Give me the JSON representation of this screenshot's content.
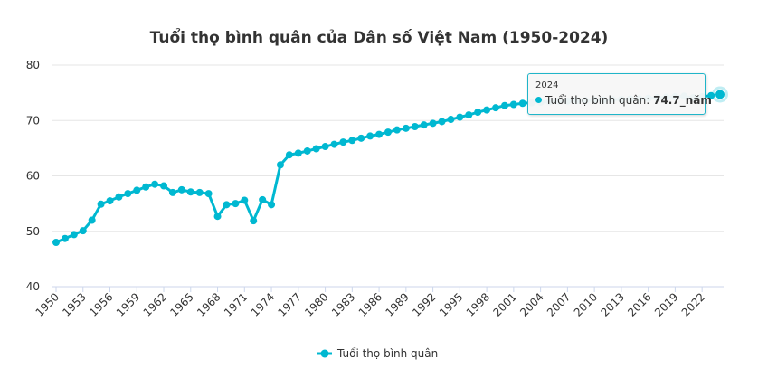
{
  "chart_data": {
    "type": "line",
    "title": "Tuổi thọ bình quân của Dân số Việt Nam (1950-2024)",
    "xlabel": "",
    "ylabel": "",
    "x": [
      1950,
      1951,
      1952,
      1953,
      1954,
      1955,
      1956,
      1957,
      1958,
      1959,
      1960,
      1961,
      1962,
      1963,
      1964,
      1965,
      1966,
      1967,
      1968,
      1969,
      1970,
      1971,
      1972,
      1973,
      1974,
      1975,
      1976,
      1977,
      1978,
      1979,
      1980,
      1981,
      1982,
      1983,
      1984,
      1985,
      1986,
      1987,
      1988,
      1989,
      1990,
      1991,
      1992,
      1993,
      1994,
      1995,
      1996,
      1997,
      1998,
      1999,
      2000,
      2001,
      2002,
      2003,
      2004,
      2005,
      2006,
      2007,
      2008,
      2009,
      2010,
      2011,
      2012,
      2013,
      2014,
      2015,
      2016,
      2017,
      2018,
      2019,
      2020,
      2021,
      2022,
      2023,
      2024
    ],
    "series": [
      {
        "name": "Tuổi thọ bình quân",
        "color": "#00b8d1",
        "values": [
          48.0,
          48.7,
          49.4,
          50.1,
          52.0,
          54.9,
          55.5,
          56.2,
          56.8,
          57.4,
          58.0,
          58.5,
          58.2,
          57.0,
          57.5,
          57.1,
          57.0,
          56.8,
          52.7,
          54.8,
          55.0,
          55.6,
          51.9,
          55.7,
          54.8,
          62.0,
          63.8,
          64.1,
          64.5,
          64.9,
          65.3,
          65.7,
          66.1,
          66.4,
          66.8,
          67.2,
          67.5,
          67.9,
          68.3,
          68.6,
          68.9,
          69.2,
          69.5,
          69.8,
          70.2,
          70.6,
          71.0,
          71.5,
          71.9,
          72.3,
          72.7,
          72.9,
          73.1,
          73.2,
          73.3,
          73.4,
          73.5,
          73.5,
          73.6,
          73.6,
          73.7,
          73.7,
          73.8,
          73.8,
          73.9,
          73.9,
          74.0,
          74.1,
          74.2,
          74.3,
          74.4,
          74.1,
          74.3,
          74.5,
          74.7
        ]
      }
    ],
    "ylim": [
      40,
      80
    ],
    "yticks": [
      40,
      50,
      60,
      70,
      80
    ],
    "xtick_labels": [
      "1950",
      "1953",
      "1956",
      "1959",
      "1962",
      "1965",
      "1968",
      "1971",
      "1974",
      "1977",
      "1980",
      "1983",
      "1986",
      "1989",
      "1992",
      "1995",
      "1998",
      "2001",
      "2004",
      "2007",
      "2010",
      "2013",
      "2016",
      "2019",
      "2022"
    ],
    "grid": true,
    "legend": "bottom-center"
  },
  "tooltip": {
    "year": "2024",
    "label": "Tuổi thọ bình quân:",
    "value": "74.7_năm"
  }
}
